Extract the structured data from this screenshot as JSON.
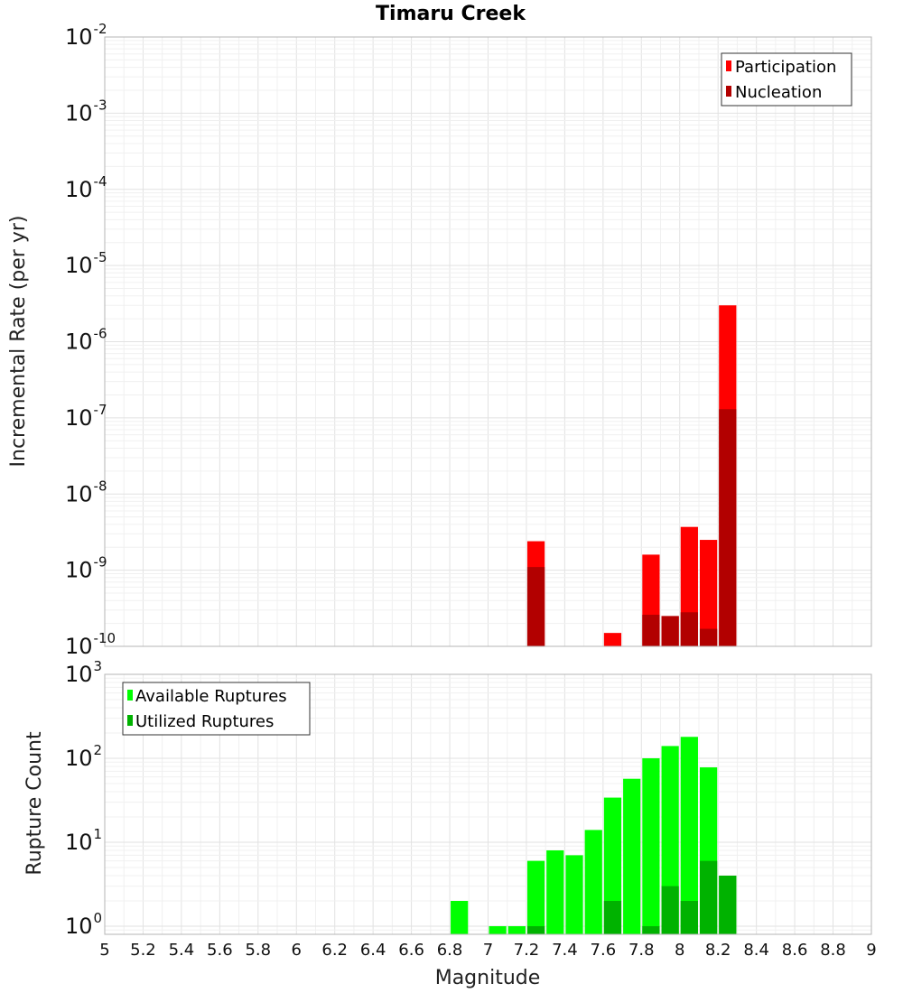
{
  "chart_data": {
    "title": "Timaru Creek",
    "xlabel": "Magnitude",
    "xlim": [
      5,
      9
    ],
    "x_ticks": [
      "5",
      "5.2",
      "5.4",
      "5.6",
      "5.8",
      "6",
      "6.2",
      "6.4",
      "6.6",
      "6.8",
      "7",
      "7.2",
      "7.4",
      "7.6",
      "7.8",
      "8",
      "8.2",
      "8.4",
      "8.6",
      "8.8",
      "9"
    ],
    "panels": [
      {
        "type": "bar",
        "ylabel": "Incremental Rate (per yr)",
        "yscale": "log",
        "ylim": [
          1e-10,
          0.01
        ],
        "y_tick_exponents": [
          "-2",
          "-3",
          "-4",
          "-5",
          "-6",
          "-7",
          "-8",
          "-9",
          "-10"
        ],
        "legend_position": "top-right",
        "series": [
          {
            "name": "Participation",
            "color": "#ff0000",
            "x": [
              7.25,
              7.65,
              7.85,
              7.95,
              8.05,
              8.15,
              8.25
            ],
            "values": [
              2.4e-09,
              1.5e-10,
              1.6e-09,
              2.5e-10,
              3.7e-09,
              2.5e-09,
              3e-06
            ]
          },
          {
            "name": "Nucleation",
            "color": "#b20000",
            "x": [
              7.25,
              7.85,
              7.95,
              8.05,
              8.15,
              8.25
            ],
            "values": [
              1.1e-09,
              2.6e-10,
              2.5e-10,
              2.8e-10,
              1.7e-10,
              1.3e-07
            ]
          }
        ]
      },
      {
        "type": "bar",
        "ylabel": "Rupture Count",
        "yscale": "log",
        "ylim": [
          0.8,
          1000
        ],
        "y_tick_exponents": [
          "3",
          "2",
          "1",
          "0"
        ],
        "legend_position": "top-left",
        "series": [
          {
            "name": "Available Ruptures",
            "color": "#00ff00",
            "x": [
              6.85,
              7.05,
              7.15,
              7.25,
              7.35,
              7.45,
              7.55,
              7.65,
              7.75,
              7.85,
              7.95,
              8.05,
              8.15,
              8.25
            ],
            "values": [
              2,
              1,
              1,
              6,
              8,
              7,
              14,
              34,
              57,
              100,
              140,
              180,
              78,
              4
            ]
          },
          {
            "name": "Utilized Ruptures",
            "color": "#00b200",
            "x": [
              7.25,
              7.65,
              7.85,
              7.95,
              8.05,
              8.15,
              8.25
            ],
            "values": [
              1,
              2,
              1,
              3,
              2,
              6,
              4
            ]
          }
        ]
      }
    ]
  }
}
